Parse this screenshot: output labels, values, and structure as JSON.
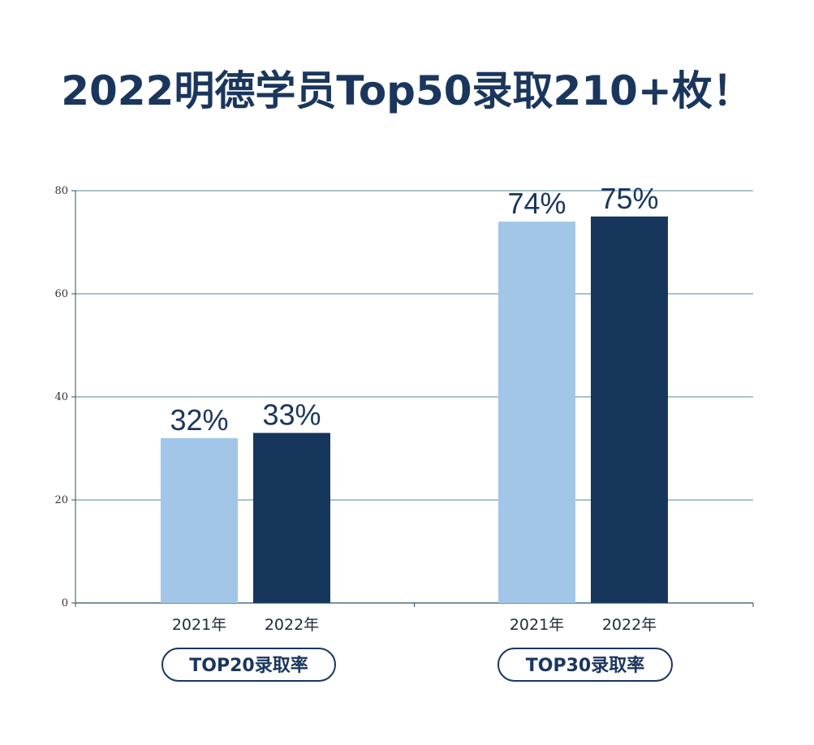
{
  "title": "2022明德学员Top50录取210+枚！",
  "colors": {
    "y2021": "#a1c6e8",
    "y2022": "#17365c",
    "grid": "#4f8a98",
    "axis": "#2b4f66"
  },
  "chart_data": {
    "type": "bar",
    "ylim": [
      0,
      80
    ],
    "yticks": [
      0,
      20,
      40,
      60,
      80
    ],
    "grid": true,
    "groups": [
      {
        "label": "TOP20录取率",
        "categories": [
          "2021年",
          "2022年"
        ],
        "values": [
          32,
          33
        ],
        "data_labels": [
          "32%",
          "33%"
        ]
      },
      {
        "label": "TOP30录取率",
        "categories": [
          "2021年",
          "2022年"
        ],
        "values": [
          74,
          75
        ],
        "data_labels": [
          "74%",
          "75%"
        ]
      }
    ]
  }
}
